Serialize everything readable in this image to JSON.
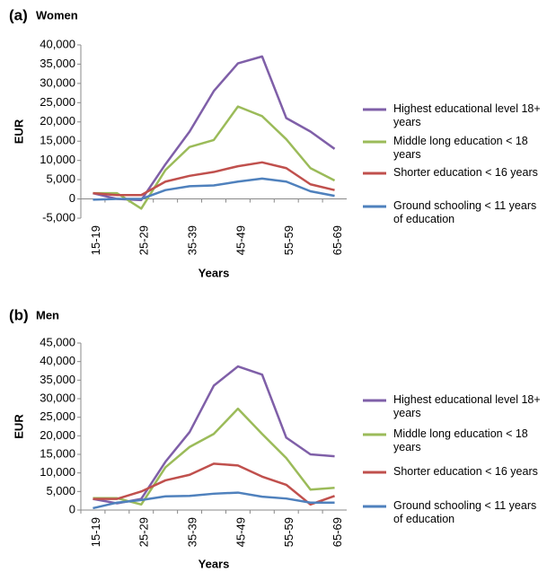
{
  "chart_data": [
    {
      "type": "line",
      "label": "(a)",
      "title": "Women",
      "x_label": "Years",
      "y_label": "EUR",
      "categories": [
        "15-19",
        null,
        "25-29",
        null,
        "35-39",
        null,
        "45-49",
        null,
        "55-59",
        null,
        "65-69"
      ],
      "ylim": [
        -5000,
        40000
      ],
      "yticks": [
        {
          "value": -5000,
          "label": "-5,000"
        },
        0,
        {
          "value": 5000,
          "label": "5,000"
        },
        {
          "value": 10000,
          "label": "10,000"
        },
        {
          "value": 15000,
          "label": "15,000"
        },
        {
          "value": 20000,
          "label": "20,000"
        },
        {
          "value": 25000,
          "label": "25,000"
        },
        {
          "value": 30000,
          "label": "30,000"
        },
        {
          "value": 35000,
          "label": "35,000"
        },
        {
          "value": 40000,
          "label": "40,000"
        }
      ],
      "grid": false,
      "series": [
        {
          "name": "Highest educational level 18+ years",
          "color": "#7f5fa8",
          "values": [
            1500,
            0,
            -300,
            9000,
            17500,
            28000,
            35200,
            37000,
            21000,
            17500,
            13000
          ]
        },
        {
          "name": "Middle long education < 18 years",
          "color": "#9bbb59",
          "values": [
            1500,
            1500,
            -2500,
            7500,
            13500,
            15300,
            24000,
            21500,
            15500,
            8000,
            4800
          ]
        },
        {
          "name": "Shorter education < 16  years",
          "color": "#c0504d",
          "values": [
            1500,
            1000,
            1000,
            4500,
            6000,
            7000,
            8500,
            9500,
            8000,
            3800,
            2300
          ]
        },
        {
          "name": "Ground schooling < 11 years of education",
          "color": "#4f81bd",
          "values": [
            -200,
            0,
            0,
            2300,
            3300,
            3500,
            4500,
            5300,
            4500,
            2000,
            800
          ]
        }
      ]
    },
    {
      "type": "line",
      "label": "(b)",
      "title": "Men",
      "x_label": "Years",
      "y_label": "EUR",
      "categories": [
        "15-19",
        null,
        "25-29",
        null,
        "35-39",
        null,
        "45-49",
        null,
        "55-59",
        null,
        "65-69"
      ],
      "ylim": [
        0,
        45000
      ],
      "yticks": [
        0,
        {
          "value": 5000,
          "label": "5,000"
        },
        {
          "value": 10000,
          "label": "10,000"
        },
        {
          "value": 15000,
          "label": "15,000"
        },
        {
          "value": 20000,
          "label": "20,000"
        },
        {
          "value": 25000,
          "label": "25,000"
        },
        {
          "value": 30000,
          "label": "30,000"
        },
        {
          "value": 35000,
          "label": "35,000"
        },
        {
          "value": 40000,
          "label": "40,000"
        },
        {
          "value": 45000,
          "label": "45,000"
        }
      ],
      "grid": false,
      "series": [
        {
          "name": "Highest educational level 18+ years",
          "color": "#7f5fa8",
          "values": [
            3000,
            1800,
            3000,
            13000,
            21000,
            33500,
            38700,
            36500,
            19500,
            15000,
            14500
          ]
        },
        {
          "name": "Middle long education < 18 years",
          "color": "#9bbb59",
          "values": [
            3200,
            3200,
            1500,
            11500,
            17000,
            20500,
            27300,
            20500,
            14000,
            5500,
            6000
          ]
        },
        {
          "name": "Shorter education < 16 years",
          "color": "#c0504d",
          "values": [
            3000,
            3000,
            5000,
            8000,
            9500,
            12500,
            12000,
            9000,
            6800,
            1500,
            3800
          ]
        },
        {
          "name": "Ground schooling < 11 years of education",
          "color": "#4f81bd",
          "values": [
            500,
            2000,
            2700,
            3700,
            3800,
            4400,
            4700,
            3600,
            3100,
            2000,
            2000
          ]
        }
      ]
    }
  ]
}
